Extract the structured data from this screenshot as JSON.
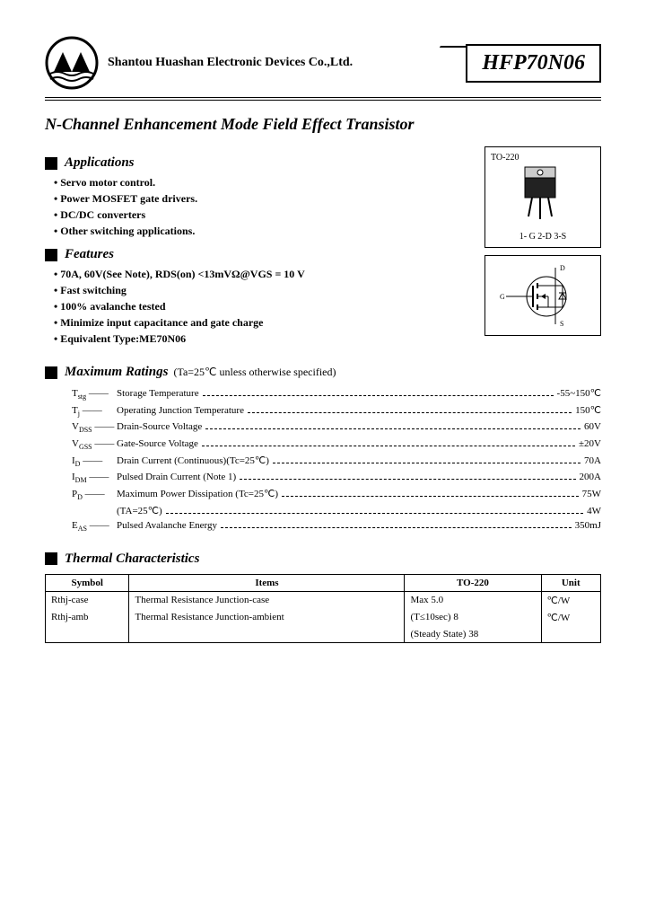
{
  "header": {
    "company": "Shantou Huashan Electronic Devices Co.,Ltd.",
    "part_number": "HFP70N06"
  },
  "title": "N-Channel Enhancement Mode Field Effect Transistor",
  "applications": {
    "heading": "Applications",
    "items": [
      "Servo motor control.",
      "Power MOSFET gate drivers.",
      "DC/DC converters",
      "Other switching applications."
    ]
  },
  "features": {
    "heading": "Features",
    "items": [
      "70A, 60V(See Note), RDS(on) <13mVΩ@VGS = 10 V",
      "Fast switching",
      "100% avalanche tested",
      "Minimize input capacitance and gate charge",
      "Equivalent Type:ME70N06"
    ]
  },
  "package": {
    "name": "TO-220",
    "pins": "1- G   2-D   3-S",
    "symbol_pins": {
      "g": "G",
      "d": "D",
      "s": "S"
    }
  },
  "max_ratings": {
    "heading": "Maximum Ratings",
    "condition": "(Ta=25℃ unless otherwise specified)",
    "rows": [
      {
        "symbol": "T",
        "sub": "stg",
        "name": "Storage Temperature",
        "value": "-55~150℃"
      },
      {
        "symbol": "T",
        "sub": "j",
        "name": "Operating Junction Temperature",
        "value": "150℃"
      },
      {
        "symbol": "V",
        "sub": "DSS",
        "name": "Drain-Source Voltage",
        "value": "60V"
      },
      {
        "symbol": "V",
        "sub": "GSS",
        "name": "Gate-Source Voltage",
        "value": "±20V"
      },
      {
        "symbol": "I",
        "sub": "D",
        "name": "Drain Current (Continuous)(Tc=25℃)",
        "value": "70A"
      },
      {
        "symbol": "I",
        "sub": "DM",
        "name": "Pulsed Drain Current (Note 1)",
        "value": "200A"
      },
      {
        "symbol": "P",
        "sub": "D",
        "name": "Maximum Power Dissipation (Tc=25℃)",
        "value": "75W"
      },
      {
        "symbol": "",
        "sub": "",
        "name": "                                                 (TA=25℃)",
        "value": "4W"
      },
      {
        "symbol": "E",
        "sub": "AS",
        "name": "Pulsed Avalanche Energy",
        "value": "350mJ"
      }
    ]
  },
  "thermal": {
    "heading": "Thermal Characteristics",
    "columns": [
      "Symbol",
      "Items",
      "TO-220",
      "Unit"
    ],
    "rows": [
      [
        "Rthj-case",
        "Thermal Resistance Junction-case",
        "Max   5.0",
        "℃/W"
      ],
      [
        "Rthj-amb",
        "Thermal Resistance Junction-ambient",
        "(T≤10sec)   8",
        "℃/W"
      ],
      [
        "",
        "",
        "(Steady State) 38",
        ""
      ]
    ]
  }
}
